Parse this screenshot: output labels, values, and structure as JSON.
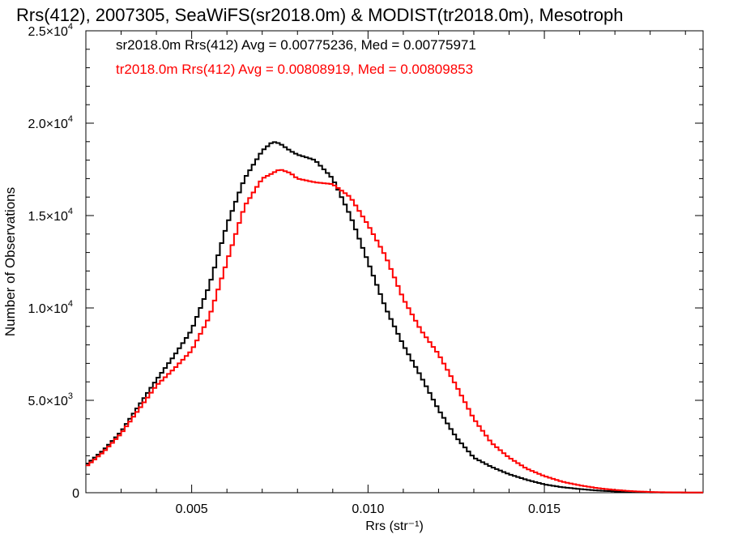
{
  "chart_data": {
    "type": "line",
    "title": "Rrs(412), 2007305, SeaWiFS(sr2018.0m) & MODIST(tr2018.0m), Mesotroph",
    "xlabel": "Rrs (str⁻¹)",
    "ylabel": "Number of Observations",
    "xlim": [
      0.002,
      0.0195
    ],
    "ylim": [
      0,
      25000
    ],
    "x_ticks": [
      {
        "value": 0.005,
        "label": "0.005"
      },
      {
        "value": 0.01,
        "label": "0.010"
      },
      {
        "value": 0.015,
        "label": "0.015"
      }
    ],
    "y_ticks": [
      {
        "value": 0,
        "label": "0"
      },
      {
        "value": 5000,
        "label": "5.0×10",
        "exp": "3"
      },
      {
        "value": 10000,
        "label": "1.0×10",
        "exp": "4"
      },
      {
        "value": 15000,
        "label": "1.5×10",
        "exp": "4"
      },
      {
        "value": 20000,
        "label": "2.0×10",
        "exp": "4"
      },
      {
        "value": 25000,
        "label": "2.5×10",
        "exp": "4"
      }
    ],
    "step": 0.0001,
    "annotations": [
      {
        "text": "sr2018.0m Rrs(412) Avg = 0.00775236, Med = 0.00775971",
        "color": "#000000"
      },
      {
        "text": "tr2018.0m Rrs(412) Avg = 0.00808919, Med = 0.00809853",
        "color": "#ff0000"
      }
    ],
    "series": [
      {
        "color": "#000000",
        "points": [
          [
            0.002,
            1500
          ],
          [
            0.0025,
            2300
          ],
          [
            0.003,
            3300
          ],
          [
            0.0035,
            4700
          ],
          [
            0.004,
            6100
          ],
          [
            0.0045,
            7400
          ],
          [
            0.005,
            8800
          ],
          [
            0.0055,
            11200
          ],
          [
            0.006,
            14500
          ],
          [
            0.0065,
            17000
          ],
          [
            0.007,
            18500
          ],
          [
            0.0073,
            19000
          ],
          [
            0.0075,
            18900
          ],
          [
            0.0078,
            18500
          ],
          [
            0.008,
            18300
          ],
          [
            0.0085,
            18000
          ],
          [
            0.009,
            17000
          ],
          [
            0.0095,
            15000
          ],
          [
            0.01,
            12500
          ],
          [
            0.0105,
            10000
          ],
          [
            0.011,
            8000
          ],
          [
            0.0115,
            6300
          ],
          [
            0.012,
            4500
          ],
          [
            0.0125,
            3000
          ],
          [
            0.013,
            1900
          ],
          [
            0.0135,
            1400
          ],
          [
            0.014,
            1000
          ],
          [
            0.0145,
            700
          ],
          [
            0.015,
            450
          ],
          [
            0.0155,
            300
          ],
          [
            0.016,
            200
          ],
          [
            0.0165,
            120
          ],
          [
            0.017,
            70
          ],
          [
            0.0175,
            40
          ],
          [
            0.018,
            20
          ],
          [
            0.0185,
            10
          ],
          [
            0.0195,
            5
          ]
        ]
      },
      {
        "color": "#ff0000",
        "points": [
          [
            0.002,
            1400
          ],
          [
            0.0025,
            2200
          ],
          [
            0.003,
            3200
          ],
          [
            0.0035,
            4500
          ],
          [
            0.004,
            5800
          ],
          [
            0.0045,
            6700
          ],
          [
            0.005,
            7700
          ],
          [
            0.0055,
            9500
          ],
          [
            0.006,
            12500
          ],
          [
            0.0065,
            15500
          ],
          [
            0.007,
            17000
          ],
          [
            0.0073,
            17300
          ],
          [
            0.0075,
            17500
          ],
          [
            0.0078,
            17300
          ],
          [
            0.008,
            17000
          ],
          [
            0.0085,
            16800
          ],
          [
            0.009,
            16700
          ],
          [
            0.0095,
            16000
          ],
          [
            0.01,
            14500
          ],
          [
            0.0105,
            12800
          ],
          [
            0.011,
            10500
          ],
          [
            0.0115,
            8800
          ],
          [
            0.012,
            7500
          ],
          [
            0.0125,
            5800
          ],
          [
            0.013,
            4000
          ],
          [
            0.0135,
            2700
          ],
          [
            0.014,
            1900
          ],
          [
            0.0145,
            1300
          ],
          [
            0.015,
            900
          ],
          [
            0.0155,
            600
          ],
          [
            0.016,
            400
          ],
          [
            0.0165,
            250
          ],
          [
            0.017,
            150
          ],
          [
            0.0175,
            80
          ],
          [
            0.018,
            40
          ],
          [
            0.0185,
            20
          ],
          [
            0.0195,
            8
          ]
        ]
      }
    ]
  }
}
